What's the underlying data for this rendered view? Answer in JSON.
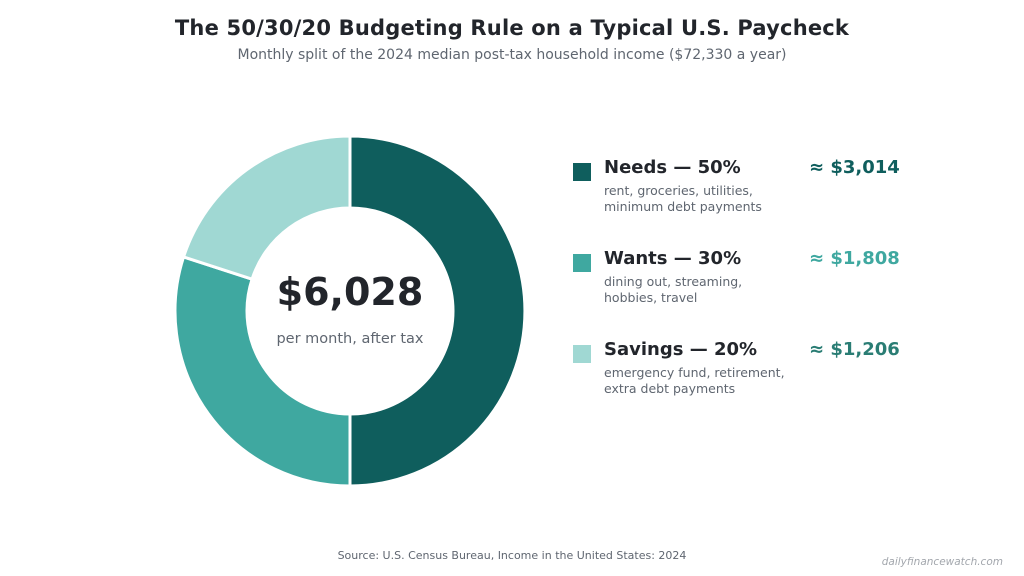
{
  "title": "The 50/30/20 Budgeting Rule on a Typical U.S. Paycheck",
  "subtitle": "Monthly split of the 2024 median post-tax household income ($72,330 a year)",
  "center": {
    "amount": "$6,028",
    "caption": "per month, after tax"
  },
  "legend": [
    {
      "label": "Needs — 50%",
      "amount": "≈ $3,014",
      "desc_line1": "rent, groceries, utilities,",
      "desc_line2": "minimum debt payments"
    },
    {
      "label": "Wants — 30%",
      "amount": "≈ $1,808",
      "desc_line1": "dining out, streaming,",
      "desc_line2": "hobbies, travel"
    },
    {
      "label": "Savings — 20%",
      "amount": "≈ $1,206",
      "desc_line1": "emergency fund, retirement,",
      "desc_line2": "extra debt payments"
    }
  ],
  "source": "Source: U.S. Census Bureau, Income in the United States: 2024",
  "watermark": "dailyfinancewatch.com",
  "chart_data": {
    "type": "pie",
    "donut": true,
    "categories": [
      "Needs",
      "Wants",
      "Savings"
    ],
    "values": [
      50,
      30,
      20
    ],
    "amounts": [
      3014,
      1808,
      1206
    ],
    "total": 6028,
    "colors": [
      "#0f5e5d",
      "#3fa8a0",
      "#a0d8d3"
    ],
    "amount_colors": [
      "#0f5e5d",
      "#3fa8a0",
      "#2a7d74"
    ],
    "start": "top",
    "direction": "clockwise"
  }
}
